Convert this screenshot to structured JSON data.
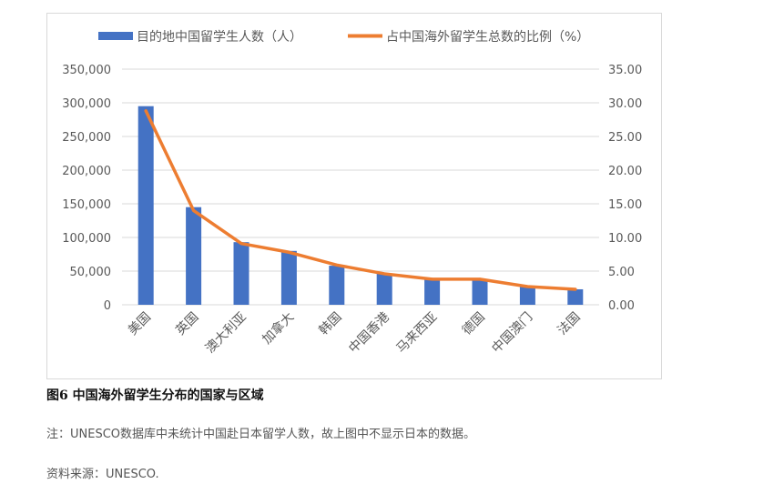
{
  "chart_data": {
    "type": "bar",
    "categories": [
      "美国",
      "英国",
      "澳大利亚",
      "加拿大",
      "韩国",
      "中国香港",
      "马来西亚",
      "德国",
      "中国澳门",
      "法国"
    ],
    "series": [
      {
        "name": "目的地中国留学生人数（人）",
        "type": "bar",
        "axis": "left",
        "values": [
          295000,
          145000,
          93000,
          80000,
          58000,
          46000,
          38000,
          38000,
          27000,
          23000
        ]
      },
      {
        "name": "占中国海外留学生总数的比例（%）",
        "type": "line",
        "axis": "right",
        "values": [
          28.8,
          14.0,
          9.1,
          7.8,
          5.9,
          4.6,
          3.8,
          3.8,
          2.7,
          2.3
        ]
      }
    ],
    "y_left": {
      "min": 0,
      "max": 350000,
      "ticks": [
        "0",
        "50,000",
        "100,000",
        "150,000",
        "200,000",
        "250,000",
        "300,000",
        "350,000"
      ]
    },
    "y_right": {
      "min": 0,
      "max": 35,
      "ticks": [
        "0.00",
        "5.00",
        "10.00",
        "15.00",
        "20.00",
        "25.00",
        "30.00",
        "35.00"
      ]
    },
    "legend": "top",
    "grid": true,
    "colors": {
      "bar": "#4472c4",
      "line": "#ed7d31",
      "grid": "#d9d9d9"
    }
  },
  "caption": "图6 中国海外留学生分布的国家与区域",
  "note": "注：UNESCO数据库中未统计中国赴日本留学人数，故上图中不显示日本的数据。",
  "source": "资料来源：UNESCO."
}
